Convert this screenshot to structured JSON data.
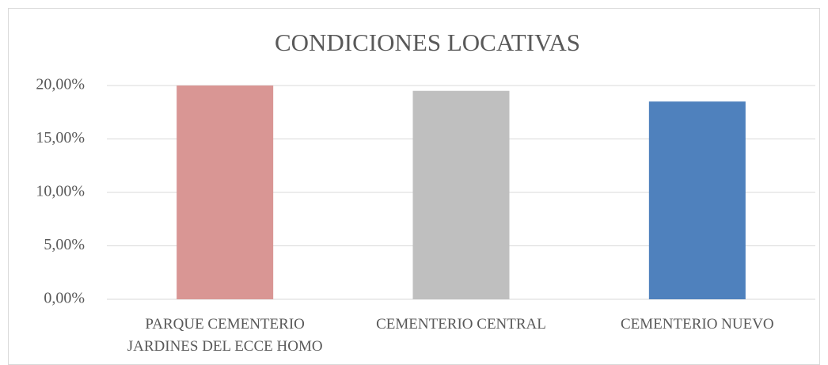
{
  "chart_data": {
    "type": "bar",
    "title": "CONDICIONES LOCATIVAS",
    "categories": [
      "PARQUE CEMENTERIO JARDINES DEL ECCE HOMO",
      "CEMENTERIO CENTRAL",
      "CEMENTERIO NUEVO"
    ],
    "values": [
      20.0,
      19.5,
      18.5
    ],
    "colors": [
      "#d99694",
      "#bfbfbf",
      "#4f81bd"
    ],
    "ylim": [
      0,
      20
    ],
    "yticks": [
      {
        "value": 0,
        "label": "0,00%"
      },
      {
        "value": 5,
        "label": "5,00%"
      },
      {
        "value": 10,
        "label": "10,00%"
      },
      {
        "value": 15,
        "label": "15,00%"
      },
      {
        "value": 20,
        "label": "20,00%"
      }
    ],
    "grid": true
  }
}
